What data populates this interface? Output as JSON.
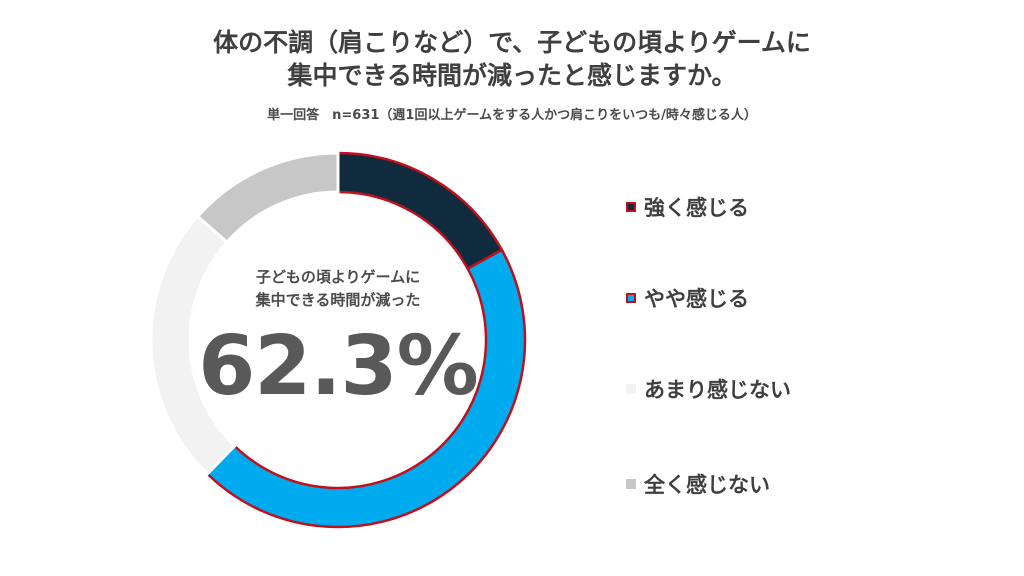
{
  "chart_data": {
    "type": "pie",
    "variant": "donut",
    "title_lines": [
      "体の不調（肩こりなど）で、子どもの頃よりゲームに",
      "集中できる時間が減ったと感じますか。"
    ],
    "subtitle": "単一回答　n=631（週1回以上ゲームをする人かつ肩こりをいつも/時々感じる人）",
    "center_label_lines": [
      "子どもの頃よりゲームに",
      "集中できる時間が減った"
    ],
    "center_value": "62.3%",
    "legend_position": "right",
    "categories": [
      "強く感じる",
      "やや感じる",
      "あまり感じない",
      "全く感じない"
    ],
    "values": [
      17.0,
      45.3,
      24.2,
      13.5
    ],
    "colors": [
      "#0f2b3d",
      "#00aaee",
      "#f2f2f2",
      "#c7c7c7"
    ],
    "highlight_border_color": "#c0101c"
  }
}
